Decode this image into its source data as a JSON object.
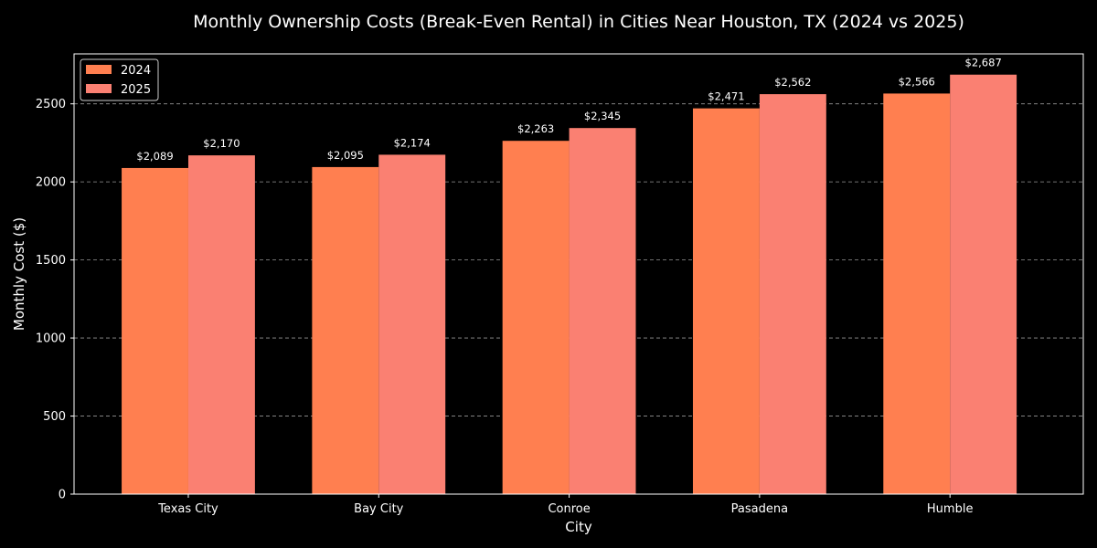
{
  "chart_data": {
    "type": "bar",
    "title": "Monthly Ownership Costs (Break-Even Rental) in Cities Near Houston, TX (2024 vs 2025)",
    "xlabel": "City",
    "ylabel": "Monthly Cost ($)",
    "categories": [
      "Texas City",
      "Bay City",
      "Conroe",
      "Pasadena",
      "Humble"
    ],
    "series": [
      {
        "name": "2024",
        "color": "#ff7f50",
        "values": [
          2089,
          2095,
          2263,
          2471,
          2566
        ],
        "labels": [
          "$2,089",
          "$2,095",
          "$2,263",
          "$2,471",
          "$2,566"
        ]
      },
      {
        "name": "2025",
        "color": "#fa8072",
        "values": [
          2170,
          2174,
          2345,
          2562,
          2687
        ],
        "labels": [
          "$2,170",
          "$2,174",
          "$2,345",
          "$2,562",
          "$2,687"
        ]
      }
    ],
    "ylim": [
      0,
      2820
    ],
    "yticks": [
      0,
      500,
      1000,
      1500,
      2000,
      2500
    ],
    "grid": "y-dashed",
    "legend_position": "top-left",
    "background": "#000000",
    "foreground": "#ffffff",
    "grid_color": "#b0b0b0"
  }
}
